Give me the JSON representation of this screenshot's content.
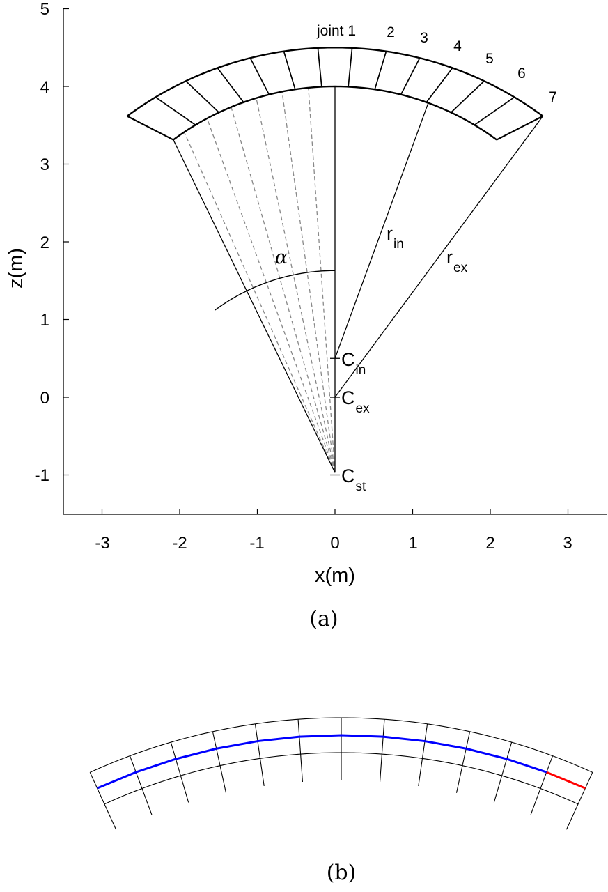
{
  "panel_a": {
    "x_ticks": [
      "-3",
      "-2",
      "-1",
      "0",
      "1",
      "2",
      "3"
    ],
    "z_ticks": [
      "-1",
      "0",
      "1",
      "2",
      "3",
      "4",
      "5"
    ],
    "xlabel": "x(m)",
    "zlabel": "z(m)",
    "joint_labels": [
      "joint 1",
      "2",
      "3",
      "4",
      "5",
      "6",
      "7"
    ],
    "alpha": "α",
    "r_in": {
      "main": "r",
      "sub": "in"
    },
    "r_ex": {
      "main": "r",
      "sub": "ex"
    },
    "c_in": {
      "main": "C",
      "sub": "in"
    },
    "c_ex": {
      "main": "C",
      "sub": "ex"
    },
    "c_st": {
      "main": "C",
      "sub": "st"
    },
    "caption": "(a)"
  },
  "panel_b": {
    "caption": "(b)",
    "colors": {
      "spine": "#0000ff",
      "end_segment": "#ff0000",
      "outline": "#000000"
    }
  }
}
